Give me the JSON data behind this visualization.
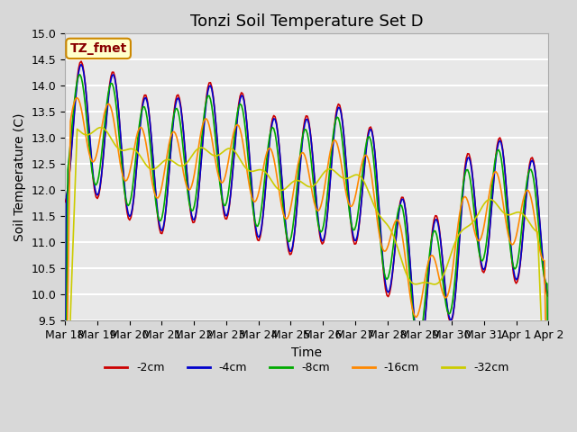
{
  "title": "Tonzi Soil Temperature Set D",
  "xlabel": "Time",
  "ylabel": "Soil Temperature (C)",
  "ylim": [
    9.5,
    15.0
  ],
  "yticks": [
    9.5,
    10.0,
    10.5,
    11.0,
    11.5,
    12.0,
    12.5,
    13.0,
    13.5,
    14.0,
    14.5,
    15.0
  ],
  "xtick_labels": [
    "Mar 18",
    "Mar 19",
    "Mar 20",
    "Mar 21",
    "Mar 22",
    "Mar 23",
    "Mar 24",
    "Mar 25",
    "Mar 26",
    "Mar 27",
    "Mar 28",
    "Mar 29",
    "Mar 30",
    "Mar 31",
    "Apr 1",
    "Apr 2"
  ],
  "n_days": 15,
  "points_per_day": 24,
  "colors": {
    "-2cm": "#cc0000",
    "-4cm": "#0000cc",
    "-8cm": "#00aa00",
    "-16cm": "#ff8800",
    "-32cm": "#cccc00"
  },
  "legend_labels": [
    "-2cm",
    "-4cm",
    "-8cm",
    "-16cm",
    "-32cm"
  ],
  "label_box_color": "#ffffcc",
  "label_box_edge": "#cc8800",
  "label_text": "TZ_fmet",
  "label_text_color": "#880000",
  "plot_bg_color": "#e8e8e8",
  "fig_bg_color": "#d8d8d8",
  "grid_color": "#ffffff",
  "title_fontsize": 13,
  "axis_fontsize": 10,
  "tick_fontsize": 9
}
